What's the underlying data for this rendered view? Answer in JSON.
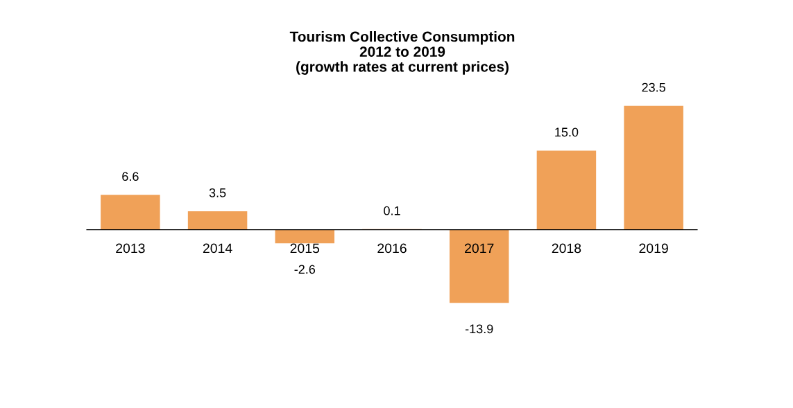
{
  "chart_data": {
    "type": "bar",
    "title": "Tourism Collective Consumption\n2012 to 2019\n(growth rates at current prices)",
    "categories": [
      "2013",
      "2014",
      "2015",
      "2016",
      "2017",
      "2018",
      "2019"
    ],
    "values": [
      6.6,
      3.5,
      -2.6,
      0.1,
      -13.9,
      15.0,
      23.5
    ],
    "value_labels": [
      "6.6",
      "3.5",
      "-2.6",
      "0.1",
      "-13.9",
      "15.0",
      "23.5"
    ],
    "color": "#f0a158",
    "grid": false,
    "legend": false
  }
}
